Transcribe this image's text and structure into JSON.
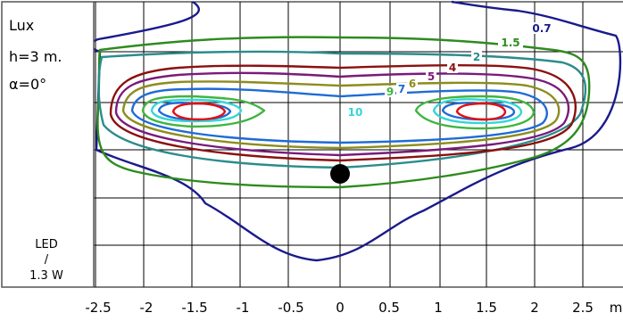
{
  "side_text": {
    "unit": "Lux",
    "height": "h=3 m.",
    "angle_symbol": "α",
    "angle": "=0°",
    "source_line1": "LED",
    "source_line2": "/",
    "source_line3": "1.3 W"
  },
  "chart_data": {
    "type": "contour",
    "unit": "Lux",
    "x_ticks": [
      "-2.5",
      "-2",
      "-1.5",
      "-1",
      "-0.5",
      "0",
      "0.5",
      "1",
      "1.5",
      "2",
      "2.5"
    ],
    "x_unit_label": "m",
    "xlim": [
      -3.5,
      3.0
    ],
    "ylim": [
      -2.2,
      1.5
    ],
    "grid": true,
    "light_source": {
      "x": 0,
      "y": 0
    },
    "series": [
      {
        "name": "0.7",
        "color": "#1a1a8c"
      },
      {
        "name": "1.5",
        "color": "#2e8b1e"
      },
      {
        "name": "2",
        "color": "#2a8c8c"
      },
      {
        "name": "4",
        "color": "#8b1010"
      },
      {
        "name": "5",
        "color": "#7a1a7a"
      },
      {
        "name": "6",
        "color": "#8c8c1e"
      },
      {
        "name": "7",
        "color": "#1e6bd6"
      },
      {
        "name": "9",
        "color": "#3fb53f"
      },
      {
        "name": "10",
        "color": "#35d6d6"
      },
      {
        "name": "",
        "color": "#e01010"
      }
    ]
  }
}
